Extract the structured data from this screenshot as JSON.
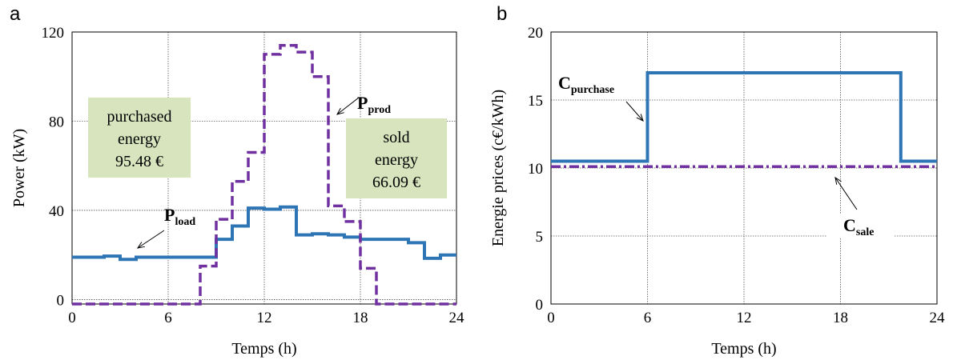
{
  "colors": {
    "load": "#2e75b6",
    "prod": "#7030a0",
    "box": "#d7e4bd",
    "grid": "#555555"
  },
  "chart_data": [
    {
      "panel": "a",
      "type": "line",
      "xlabel": "Temps (h)",
      "ylabel": "Power (kW)",
      "xlim": [
        0,
        24
      ],
      "ylim": [
        -2,
        120
      ],
      "xticks": [
        0,
        6,
        12,
        18,
        24
      ],
      "yticks": [
        0,
        40,
        80,
        120
      ],
      "grid": true,
      "series": [
        {
          "key": "load",
          "name": "P",
          "name_sub": "load",
          "style": "solid",
          "step_values": [
            19,
            19,
            19.5,
            18,
            19,
            19,
            19,
            19,
            19,
            27,
            33,
            41,
            40.5,
            41.5,
            29,
            29.5,
            29,
            28,
            27,
            27,
            27,
            25.5,
            18.5,
            20
          ]
        },
        {
          "key": "prod",
          "name": "P",
          "name_sub": "prod",
          "style": "dashed",
          "step_values": [
            -2,
            -2,
            -2,
            -2,
            -2,
            -2,
            -2,
            -2,
            15,
            36,
            53,
            66,
            110,
            114,
            111,
            100,
            42,
            35,
            14,
            -2,
            -2,
            -2,
            -2,
            -2
          ]
        }
      ],
      "annotations": [
        {
          "lines": [
            "purchased",
            "energy",
            "95.48 €"
          ]
        },
        {
          "lines": [
            "sold",
            "energy",
            "66.09 €"
          ]
        }
      ]
    },
    {
      "panel": "b",
      "type": "line",
      "xlabel": "Temps (h)",
      "ylabel": "Energie prices  (c€/kWh)",
      "xlim": [
        0,
        24
      ],
      "ylim": [
        0,
        20
      ],
      "xticks": [
        0,
        6,
        12,
        18,
        24
      ],
      "yticks": [
        0,
        5,
        10,
        15,
        20
      ],
      "grid": true,
      "series": [
        {
          "key": "purchase",
          "name": "C",
          "name_sub": "purchase",
          "style": "solid",
          "points": [
            [
              0,
              10.5
            ],
            [
              6,
              10.5
            ],
            [
              6,
              17
            ],
            [
              21.75,
              17
            ],
            [
              21.75,
              10.5
            ],
            [
              24,
              10.5
            ]
          ]
        },
        {
          "key": "sale",
          "name": "C",
          "name_sub": "sale",
          "style": "dashed",
          "points": [
            [
              0,
              10.1
            ],
            [
              24,
              10.1
            ]
          ]
        }
      ]
    }
  ]
}
